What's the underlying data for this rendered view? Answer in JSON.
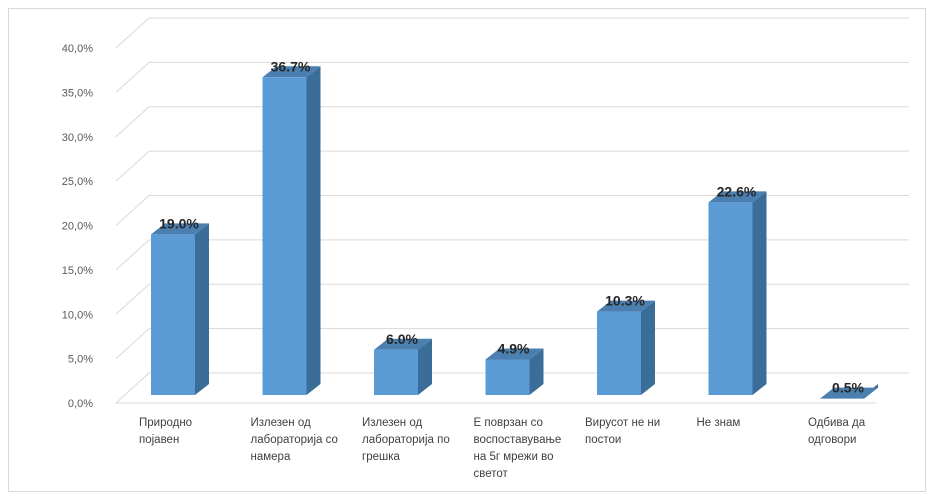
{
  "chart_data": {
    "type": "bar",
    "title": "",
    "xlabel": "",
    "ylabel": "",
    "categories": [
      [
        "Природно",
        "појавен"
      ],
      [
        "Излезен од",
        "лабораторија со",
        "намера"
      ],
      [
        "Излезен од",
        "лабораторија по",
        "грешка"
      ],
      [
        "Е поврзан со",
        "воспоставување",
        "на 5г мрежи во",
        "светот"
      ],
      [
        "Вирусот не ни",
        "постои"
      ],
      [
        "Не знам"
      ],
      [
        "Одбива да",
        "одговори"
      ]
    ],
    "values": [
      19.0,
      36.7,
      6.0,
      4.9,
      10.3,
      22.6,
      0.5
    ],
    "value_labels": [
      "19.0%",
      "36.7%",
      "6.0%",
      "4.9%",
      "10.3%",
      "22.6%",
      "0.5%"
    ],
    "y_ticks": [
      0,
      5,
      10,
      15,
      20,
      25,
      30,
      35,
      40
    ],
    "y_tick_labels": [
      "0,0%",
      "5,0%",
      "10,0%",
      "15,0%",
      "20,0%",
      "25,0%",
      "30,0%",
      "35,0%",
      "40,0%"
    ],
    "ylim": [
      0,
      40
    ],
    "grid": true,
    "legend": "none",
    "style": "3d-column",
    "colors": {
      "bar_front": "#5b9bd5",
      "bar_side": "#3b6d99",
      "bar_top": "#4a7fb0",
      "grid": "#d9d9d9"
    }
  }
}
